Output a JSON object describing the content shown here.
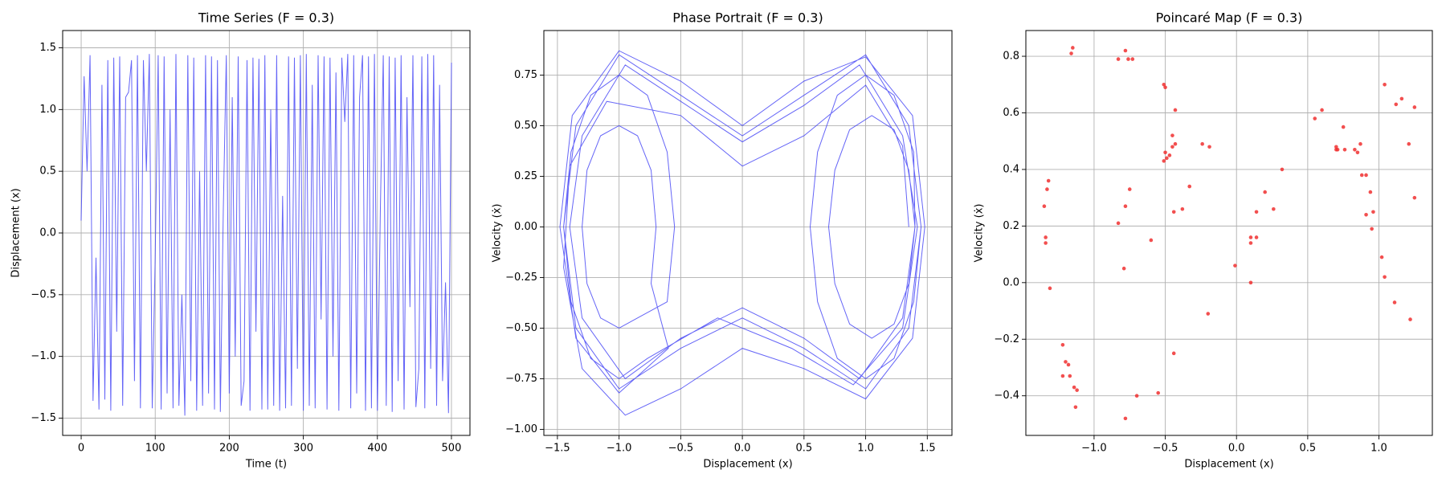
{
  "chart_data": [
    {
      "type": "line",
      "title": "Time Series (F = 0.3)",
      "xlabel": "Time (t)",
      "ylabel": "Displacement (x)",
      "color": "#3f3ff5",
      "grid": true,
      "xlim": [
        -25,
        525
      ],
      "ylim": [
        -1.64,
        1.64
      ],
      "xticks": [
        0,
        100,
        200,
        300,
        400,
        500
      ],
      "yticks": [
        {
          "value": -1.5,
          "label": "−1.5"
        },
        {
          "value": -1.0,
          "label": "−1.0"
        },
        {
          "value": -0.5,
          "label": "−0.5"
        },
        {
          "value": 0,
          "label": "0.0"
        },
        {
          "value": 0.5,
          "label": "0.5"
        },
        {
          "value": 1.0,
          "label": "1.0"
        },
        {
          "value": 1.5,
          "label": "1.5"
        }
      ],
      "x": [
        0,
        4,
        8,
        12,
        16,
        20,
        24,
        28,
        32,
        36,
        40,
        44,
        48,
        52,
        56,
        60,
        64,
        68,
        72,
        76,
        80,
        84,
        88,
        92,
        96,
        100,
        104,
        108,
        112,
        116,
        120,
        124,
        128,
        132,
        136,
        140,
        144,
        148,
        152,
        156,
        160,
        164,
        168,
        172,
        176,
        180,
        184,
        188,
        192,
        196,
        200,
        204,
        208,
        212,
        216,
        220,
        224,
        228,
        232,
        236,
        240,
        244,
        248,
        252,
        256,
        260,
        264,
        268,
        272,
        276,
        280,
        284,
        288,
        292,
        296,
        300,
        304,
        308,
        312,
        316,
        320,
        324,
        328,
        332,
        336,
        340,
        344,
        348,
        352,
        356,
        360,
        364,
        368,
        372,
        376,
        380,
        384,
        388,
        392,
        396,
        400,
        404,
        408,
        412,
        416,
        420,
        424,
        428,
        432,
        436,
        440,
        444,
        448,
        452,
        456,
        460,
        464,
        468,
        472,
        476,
        480,
        484,
        488,
        492,
        496,
        500
      ],
      "values": [
        0.1,
        1.27,
        0.5,
        1.44,
        -1.36,
        -0.2,
        -1.43,
        1.2,
        -1.35,
        1.4,
        -1.44,
        1.42,
        -0.8,
        1.43,
        -1.4,
        1.1,
        1.14,
        1.4,
        -1.2,
        1.44,
        -1.42,
        1.4,
        0.5,
        1.45,
        -1.42,
        -0.2,
        1.44,
        -1.43,
        1.43,
        -1.3,
        1.0,
        -1.42,
        1.45,
        -1.4,
        -0.5,
        -1.48,
        1.44,
        -1.2,
        1.42,
        -1.44,
        0.5,
        -1.4,
        1.44,
        -1.3,
        1.43,
        -1.43,
        1.4,
        -1.45,
        0.2,
        1.44,
        -1.3,
        1.1,
        -1.0,
        1.43,
        -1.4,
        -1.2,
        1.4,
        -1.44,
        1.42,
        -0.8,
        1.41,
        -1.43,
        1.44,
        -1.43,
        1.0,
        -1.4,
        1.44,
        -1.44,
        0.3,
        -1.42,
        1.43,
        -1.4,
        1.42,
        -1.1,
        1.44,
        -1.44,
        1.45,
        -1.4,
        1.2,
        -1.42,
        1.44,
        -0.7,
        1.43,
        -1.43,
        1.42,
        -1.0,
        1.3,
        -1.44,
        1.42,
        0.9,
        1.45,
        -1.42,
        1.44,
        -1.3,
        1.1,
        1.44,
        -1.44,
        1.43,
        -1.42,
        1.45,
        -1.44,
        0.2,
        1.44,
        -1.4,
        1.43,
        -1.45,
        1.42,
        -1.2,
        1.44,
        -1.43,
        1.1,
        -0.6,
        1.44,
        -1.41,
        -1.1,
        1.43,
        -1.42,
        1.45,
        -1.1,
        1.44,
        -1.4,
        1.2,
        -1.2,
        -0.4,
        -1.46,
        1.38
      ]
    },
    {
      "type": "line",
      "title": "Phase Portrait (F = 0.3)",
      "xlabel": "Displacement (x)",
      "ylabel": "Velocity (ẋ)",
      "color": "#3f3ff5",
      "grid": true,
      "xlim": [
        -1.61,
        1.7
      ],
      "ylim": [
        -1.03,
        0.97
      ],
      "xticks": [
        {
          "value": -1.5,
          "label": "−1.5"
        },
        {
          "value": -1.0,
          "label": "−1.0"
        },
        {
          "value": -0.5,
          "label": "−0.5"
        },
        {
          "value": 0,
          "label": "0.0"
        },
        {
          "value": 0.5,
          "label": "0.5"
        },
        {
          "value": 1.0,
          "label": "1.0"
        },
        {
          "value": 1.5,
          "label": "1.5"
        }
      ],
      "yticks": [
        {
          "value": -1.0,
          "label": "−1.00"
        },
        {
          "value": -0.75,
          "label": "−0.75"
        },
        {
          "value": -0.5,
          "label": "−0.50"
        },
        {
          "value": -0.25,
          "label": "−0.25"
        },
        {
          "value": 0,
          "label": "0.00"
        },
        {
          "value": 0.25,
          "label": "0.25"
        },
        {
          "value": 0.5,
          "label": "0.50"
        },
        {
          "value": 0.75,
          "label": "0.75"
        }
      ],
      "x": [
        1.45,
        1.35,
        1.0,
        0.5,
        0,
        -0.5,
        -1.0,
        -1.35,
        -1.45,
        -1.35,
        -1.0,
        -0.5,
        0,
        0.5,
        1.0,
        1.35,
        1.45,
        1.39,
        1.23,
        1.0,
        0.77,
        0.61,
        0.55,
        0.61,
        0.77,
        1.0,
        1.23,
        1.39,
        1.4,
        1.35,
        1.23,
        1.05,
        0.87,
        0.75,
        0.7,
        0.75,
        0.87,
        1.05,
        1.23,
        1.35,
        1.4,
        1.3,
        0.95,
        0.5,
        0,
        -0.5,
        -0.95,
        -1.3,
        -1.4,
        -1.3,
        -0.95,
        -0.5,
        0,
        0.5,
        0.95,
        1.3,
        1.42,
        1.3,
        0.9,
        0.4,
        -0.2,
        -0.77,
        -1.0,
        -1.23,
        -1.39,
        -1.45,
        -1.39,
        -1.23,
        -1.0,
        -0.77,
        -0.61,
        -0.55,
        -0.61,
        -0.85,
        -1.0,
        -1.15,
        -1.26,
        -1.3,
        -1.26,
        -1.15,
        -1.0,
        -0.85,
        -0.74,
        -0.7,
        -0.74,
        -0.6,
        -1.0,
        -1.35,
        -1.48,
        -1.38,
        -1.0,
        -0.5,
        0,
        0.5,
        1.0,
        1.38,
        1.48,
        1.38,
        1.0,
        0.5,
        0,
        -0.5,
        -0.95,
        -1.3,
        -1.45,
        -1.4,
        -1.1,
        -0.5,
        0,
        0.5,
        1.0,
        1.3,
        1.35
      ],
      "values": [
        0,
        -0.5,
        -0.8,
        -0.6,
        -0.45,
        -0.6,
        -0.8,
        -0.5,
        0,
        0.5,
        0.85,
        0.65,
        0.45,
        0.65,
        0.85,
        0.5,
        0,
        -0.37,
        -0.65,
        -0.75,
        -0.65,
        -0.37,
        0,
        0.37,
        0.65,
        0.75,
        0.65,
        0.37,
        0,
        -0.28,
        -0.48,
        -0.55,
        -0.48,
        -0.28,
        0,
        0.28,
        0.48,
        0.55,
        0.48,
        0.28,
        0,
        -0.45,
        -0.75,
        -0.55,
        -0.4,
        -0.55,
        -0.75,
        -0.45,
        0,
        0.45,
        0.8,
        0.62,
        0.42,
        0.6,
        0.8,
        0.45,
        0,
        -0.5,
        -0.78,
        -0.6,
        -0.45,
        -0.65,
        -0.75,
        -0.65,
        -0.37,
        0,
        0.37,
        0.65,
        0.75,
        0.65,
        0.37,
        0,
        -0.37,
        -0.45,
        -0.5,
        -0.45,
        -0.28,
        0,
        0.28,
        0.45,
        0.5,
        0.45,
        0.28,
        0,
        -0.28,
        -0.6,
        -0.82,
        -0.55,
        0,
        0.55,
        0.87,
        0.72,
        0.5,
        0.72,
        0.84,
        0.55,
        0,
        -0.55,
        -0.85,
        -0.7,
        -0.6,
        -0.8,
        -0.93,
        -0.7,
        -0.2,
        0.3,
        0.62,
        0.55,
        0.3,
        0.45,
        0.7,
        0.4,
        0
      ]
    },
    {
      "type": "scatter",
      "title": "Poincaré Map (F = 0.3)",
      "xlabel": "Displacement (x)",
      "ylabel": "Velocity (ẋ)",
      "color": "#f03030",
      "grid": true,
      "xlim": [
        -1.479,
        1.375
      ],
      "ylim": [
        -0.54,
        0.891
      ],
      "xticks": [
        {
          "value": -1.0,
          "label": "−1.0"
        },
        {
          "value": -0.5,
          "label": "−0.5"
        },
        {
          "value": 0,
          "label": "0.0"
        },
        {
          "value": 0.5,
          "label": "0.5"
        },
        {
          "value": 1.0,
          "label": "1.0"
        }
      ],
      "yticks": [
        {
          "value": -0.4,
          "label": "−0.4"
        },
        {
          "value": -0.2,
          "label": "−0.2"
        },
        {
          "value": 0,
          "label": "0.0"
        },
        {
          "value": 0.2,
          "label": "0.2"
        },
        {
          "value": 0.4,
          "label": "0.4"
        },
        {
          "value": 0.6,
          "label": "0.6"
        },
        {
          "value": 0.8,
          "label": "0.8"
        }
      ],
      "x": [
        -1.15,
        -1.16,
        -0.78,
        -0.76,
        -0.83,
        -0.73,
        -0.51,
        -0.5,
        -0.43,
        -0.45,
        -0.43,
        -0.45,
        -0.47,
        -0.49,
        -0.51,
        -0.5,
        -0.24,
        -0.19,
        -1.32,
        -1.33,
        -1.35,
        -1.34,
        -1.34,
        -1.31,
        -0.75,
        -0.78,
        -0.83,
        -0.79,
        -0.6,
        -0.44,
        -0.38,
        -0.33,
        -1.22,
        -1.2,
        -1.18,
        -1.22,
        -1.17,
        -1.14,
        -1.12,
        -1.13,
        -0.78,
        -0.7,
        -0.55,
        -0.44,
        -0.2,
        -0.01,
        0.1,
        0.1,
        0.1,
        0.14,
        0.14,
        0.2,
        0.26,
        0.32,
        0.55,
        0.6,
        0.7,
        0.7,
        0.71,
        0.75,
        0.76,
        0.83,
        0.85,
        0.87,
        0.88,
        0.91,
        0.91,
        0.94,
        0.95,
        0.96,
        1.04,
        1.12,
        1.16,
        1.21,
        1.25,
        1.25,
        1.02,
        1.04,
        1.11,
        1.22
      ],
      "values": [
        0.83,
        0.81,
        0.82,
        0.79,
        0.79,
        0.79,
        0.7,
        0.69,
        0.61,
        0.52,
        0.49,
        0.48,
        0.45,
        0.44,
        0.43,
        0.46,
        0.49,
        0.48,
        0.36,
        0.33,
        0.27,
        0.16,
        0.14,
        -0.02,
        0.33,
        0.27,
        0.21,
        0.05,
        0.15,
        0.25,
        0.26,
        0.34,
        -0.22,
        -0.28,
        -0.29,
        -0.33,
        -0.33,
        -0.37,
        -0.38,
        -0.44,
        -0.48,
        -0.4,
        -0.39,
        -0.25,
        -0.11,
        0.06,
        0,
        0.14,
        0.16,
        0.16,
        0.25,
        0.32,
        0.26,
        0.4,
        0.58,
        0.61,
        0.47,
        0.48,
        0.47,
        0.55,
        0.47,
        0.47,
        0.46,
        0.49,
        0.38,
        0.38,
        0.24,
        0.32,
        0.19,
        0.25,
        0.7,
        0.63,
        0.65,
        0.49,
        0.62,
        0.3,
        0.09,
        0.02,
        -0.07,
        -0.13
      ]
    }
  ]
}
